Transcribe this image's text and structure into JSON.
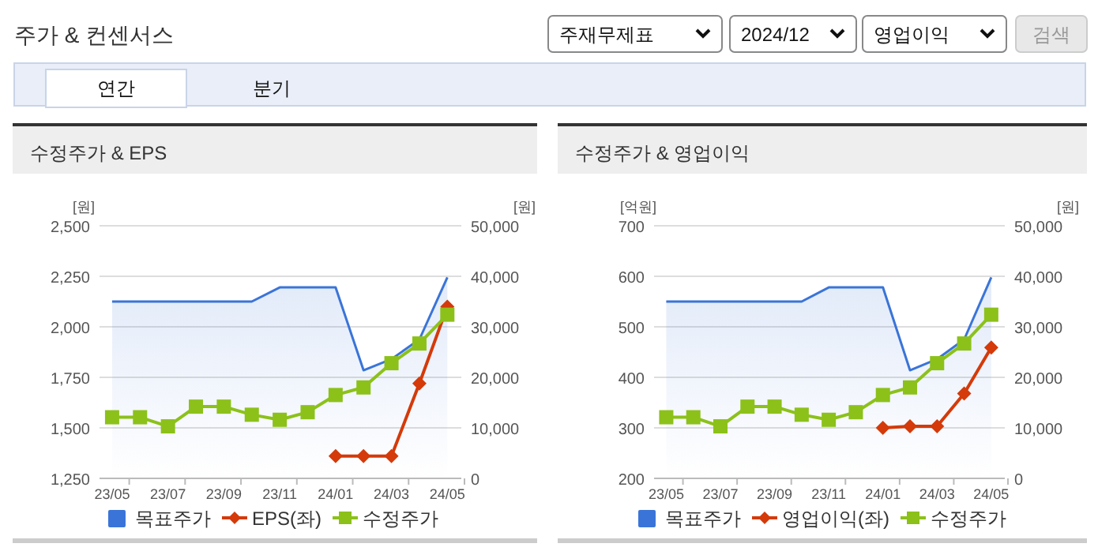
{
  "chart_data": [
    {
      "type": "other",
      "title": "주가 & 컨센서스",
      "annotations": [
        "주재무제표",
        "2024/12",
        "영업이익",
        "검색",
        "연간",
        "분기"
      ]
    },
    {
      "type": "line",
      "title": "수정주가 & EPS",
      "ylabel": "[원]",
      "y2label": "[원]",
      "categories": [
        "23/05",
        null,
        "23/07",
        null,
        "23/09",
        null,
        "23/11",
        null,
        "24/01",
        null,
        "24/03",
        null,
        "24/05"
      ],
      "ylim": [
        1250,
        2500
      ],
      "yticks": [
        {
          "value": 1250,
          "label": "1,250"
        },
        {
          "value": 1500,
          "label": "1,500"
        },
        {
          "value": 1750,
          "label": "1,750"
        },
        {
          "value": 2000,
          "label": "2,000"
        },
        {
          "value": 2250,
          "label": "2,250"
        },
        {
          "value": 2500,
          "label": "2,500"
        }
      ],
      "y2lim": [
        0,
        50000
      ],
      "y2ticks": [
        0,
        {
          "value": 10000,
          "label": "10,000"
        },
        {
          "value": 20000,
          "label": "20,000"
        },
        {
          "value": 30000,
          "label": "30,000"
        },
        {
          "value": 40000,
          "label": "40,000"
        },
        {
          "value": 50000,
          "label": "50,000"
        }
      ],
      "grid": "y",
      "legend": "bottom",
      "series": [
        {
          "name": "목표주가",
          "type": "area",
          "axis": "y2",
          "color": "#3a74d8",
          "marker": "none",
          "values": [
            35000,
            35000,
            35000,
            35000,
            35000,
            35000,
            37800,
            37800,
            37800,
            21400,
            23600,
            27500,
            39800
          ]
        },
        {
          "name": "EPS(좌)",
          "type": "line",
          "color": "#d43a0a",
          "marker": "diamond",
          "values": [
            null,
            null,
            null,
            null,
            null,
            null,
            null,
            null,
            1360,
            1360,
            1360,
            1720,
            2100
          ]
        },
        {
          "name": "수정주가",
          "type": "line",
          "axis": "y2",
          "color": "#8cc11a",
          "marker": "square",
          "values": [
            12100,
            12100,
            10300,
            14200,
            14200,
            12600,
            11600,
            13100,
            16500,
            18000,
            22800,
            26700,
            32400
          ]
        }
      ]
    },
    {
      "type": "line",
      "title": "수정주가 & 영업이익",
      "ylabel": "[억원]",
      "y2label": "[원]",
      "categories": [
        "23/05",
        null,
        "23/07",
        null,
        "23/09",
        null,
        "23/11",
        null,
        "24/01",
        null,
        "24/03",
        null,
        "24/05"
      ],
      "ylim": [
        200,
        700
      ],
      "yticks": [
        200,
        300,
        400,
        500,
        600,
        700
      ],
      "y2lim": [
        0,
        50000
      ],
      "y2ticks": [
        0,
        {
          "value": 10000,
          "label": "10,000"
        },
        {
          "value": 20000,
          "label": "20,000"
        },
        {
          "value": 30000,
          "label": "30,000"
        },
        {
          "value": 40000,
          "label": "40,000"
        },
        {
          "value": 50000,
          "label": "50,000"
        }
      ],
      "grid": "y",
      "legend": "bottom",
      "series": [
        {
          "name": "목표주가",
          "type": "area",
          "axis": "y2",
          "color": "#3a74d8",
          "marker": "none",
          "values": [
            35000,
            35000,
            35000,
            35000,
            35000,
            35000,
            37800,
            37800,
            37800,
            21400,
            23600,
            27500,
            39800
          ]
        },
        {
          "name": "영업이익(좌)",
          "type": "line",
          "color": "#d43a0a",
          "marker": "diamond",
          "values": [
            null,
            null,
            null,
            null,
            null,
            null,
            null,
            null,
            300,
            303,
            303,
            368,
            459
          ]
        },
        {
          "name": "수정주가",
          "type": "line",
          "axis": "y2",
          "color": "#8cc11a",
          "marker": "square",
          "values": [
            12100,
            12100,
            10300,
            14200,
            14200,
            12600,
            11600,
            13100,
            16500,
            18000,
            22800,
            26700,
            32400
          ]
        }
      ]
    }
  ]
}
